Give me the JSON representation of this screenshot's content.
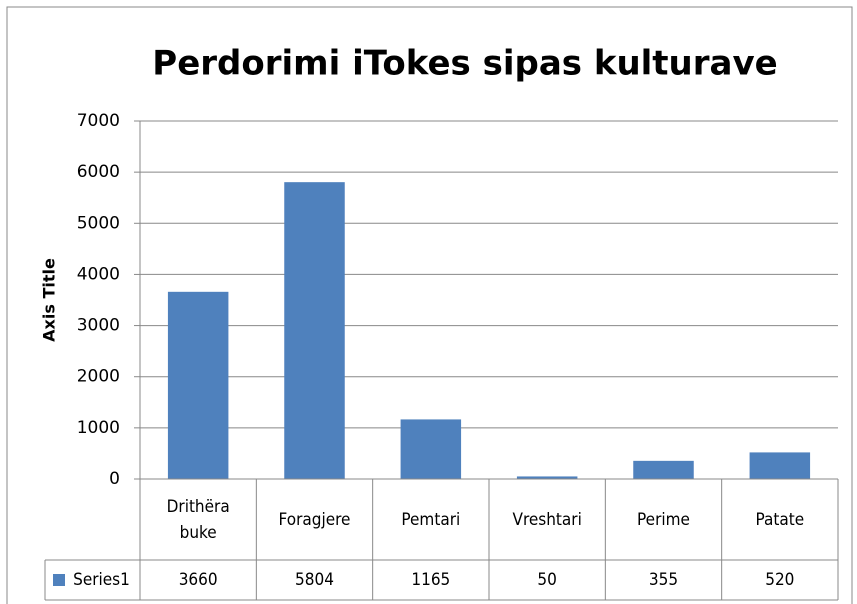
{
  "chart_data": {
    "type": "bar",
    "title": "Perdorimi iTokes sipas kulturave",
    "y_label": "Axis Title",
    "categories": [
      "Drithëra buke",
      "Foragjere",
      "Pemtari",
      "Vreshtari",
      "Perime",
      "Patate"
    ],
    "series": [
      {
        "name": "Series1",
        "color": "#4f81bd",
        "values": [
          3660,
          5804,
          1165,
          50,
          355,
          520
        ]
      }
    ],
    "ylim": [
      0,
      7000
    ],
    "yticks": [
      0,
      1000,
      2000,
      3000,
      4000,
      5000,
      6000,
      7000
    ],
    "grid": true,
    "data_table": true
  }
}
